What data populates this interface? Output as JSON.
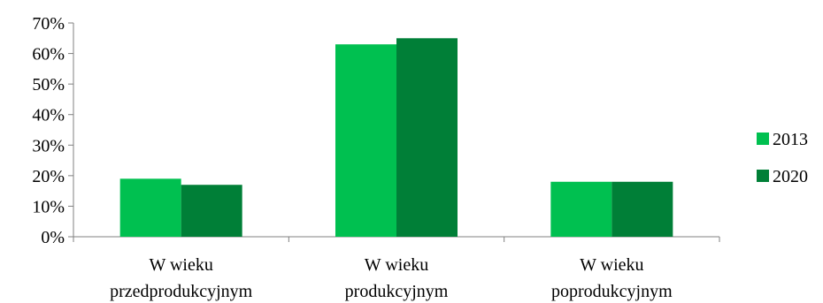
{
  "chart_data": {
    "type": "bar",
    "title": "",
    "xlabel": "",
    "ylabel": "",
    "categories": [
      [
        "W wieku",
        "przedprodukcyjnym"
      ],
      [
        "W wieku",
        "produkcyjnym"
      ],
      [
        "W wieku",
        "poprodukcyjnym"
      ]
    ],
    "series": [
      {
        "name": "2013",
        "values": [
          0.19,
          0.63,
          0.18
        ],
        "color": "#00c050"
      },
      {
        "name": "2020",
        "values": [
          0.17,
          0.65,
          0.18
        ],
        "color": "#007f37"
      }
    ],
    "ylim": [
      0,
      0.7
    ],
    "yticks": [
      0,
      0.1,
      0.2,
      0.3,
      0.4,
      0.5,
      0.6,
      0.7
    ],
    "ytick_labels": [
      "0%",
      "10%",
      "20%",
      "30%",
      "40%",
      "50%",
      "60%",
      "70%"
    ],
    "grid": false,
    "legend_position": "right",
    "axis_color": "#808080"
  }
}
